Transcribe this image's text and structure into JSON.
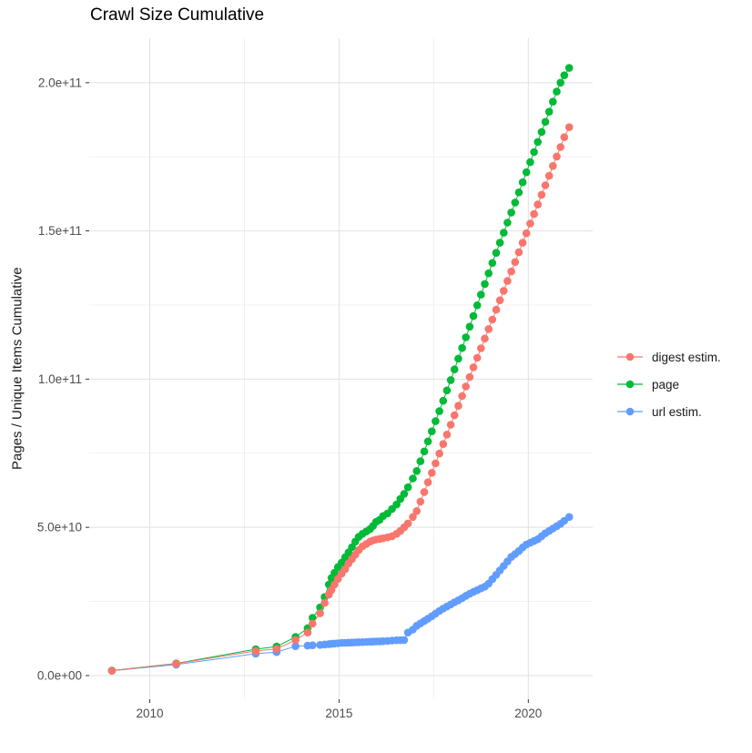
{
  "chart_data": {
    "type": "scatter",
    "title": "Crawl Size Cumulative",
    "xlabel": "",
    "ylabel": "Pages / Unique Items Cumulative",
    "legend_position": "right",
    "grid": "major and minor light-gray gridlines on white panel, no panel border",
    "x_unit": "year (decimal, crawl date)",
    "value_unit": "counts, stored in billions (1e9)",
    "x_range": [
      2008.4,
      2021.7
    ],
    "y_range_billions": [
      -8,
      215
    ],
    "x_ticks": [
      {
        "value": 2010,
        "label": "2010"
      },
      {
        "value": 2015,
        "label": "2015"
      },
      {
        "value": 2020,
        "label": "2020"
      }
    ],
    "x_minor_ticks": [
      2012.5,
      2017.5
    ],
    "y_ticks": [
      {
        "value": 0,
        "label": "0.0e+00"
      },
      {
        "value": 50,
        "label": "5.0e+10"
      },
      {
        "value": 100,
        "label": "1.0e+11"
      },
      {
        "value": 150,
        "label": "1.5e+11"
      },
      {
        "value": 200,
        "label": "2.0e+11"
      }
    ],
    "y_minor_ticks": [
      25,
      75,
      125,
      175
    ],
    "axis_text_color": "#4d4d4d",
    "major_grid_color": "#e3e3e3",
    "minor_grid_color": "#eeeeee",
    "x": [
      2009.0,
      2010.7,
      2012.8,
      2013.35,
      2013.85,
      2014.17,
      2014.3,
      2014.5,
      2014.62,
      2014.73,
      2014.8,
      2014.88,
      2014.97,
      2015.07,
      2015.16,
      2015.25,
      2015.34,
      2015.43,
      2015.52,
      2015.62,
      2015.72,
      2015.82,
      2015.9,
      2015.98,
      2016.07,
      2016.16,
      2016.28,
      2016.4,
      2016.52,
      2016.62,
      2016.72,
      2016.82,
      2016.95,
      2017.05,
      2017.15,
      2017.25,
      2017.35,
      2017.45,
      2017.55,
      2017.65,
      2017.75,
      2017.85,
      2017.95,
      2018.05,
      2018.15,
      2018.25,
      2018.35,
      2018.45,
      2018.55,
      2018.65,
      2018.75,
      2018.85,
      2018.95,
      2019.05,
      2019.15,
      2019.25,
      2019.35,
      2019.45,
      2019.55,
      2019.65,
      2019.75,
      2019.85,
      2019.95,
      2020.05,
      2020.15,
      2020.25,
      2020.35,
      2020.45,
      2020.55,
      2020.65,
      2020.75,
      2020.85,
      2020.95,
      2021.08
    ],
    "series": [
      {
        "name": "digest estim.",
        "color": "#F8766D",
        "values": [
          1.6,
          4.0,
          8.3,
          9.0,
          12.0,
          14.5,
          17.5,
          21.0,
          24.5,
          27.3,
          28.9,
          30.7,
          32.6,
          34.4,
          35.9,
          37.8,
          39.3,
          40.8,
          42.3,
          43.6,
          44.4,
          45.2,
          45.6,
          45.9,
          46.1,
          46.3,
          46.6,
          47.0,
          47.8,
          48.8,
          50.0,
          51.3,
          53.5,
          55.5,
          58.7,
          61.9,
          65.2,
          68.4,
          71.6,
          74.9,
          78.1,
          81.3,
          84.6,
          87.8,
          91.0,
          94.3,
          97.5,
          100.7,
          104.0,
          107.2,
          110.4,
          113.7,
          116.9,
          120.1,
          123.4,
          126.6,
          129.8,
          133.1,
          136.3,
          139.5,
          142.8,
          146.0,
          149.2,
          152.5,
          155.7,
          158.9,
          162.2,
          165.4,
          168.6,
          171.9,
          175.1,
          178.3,
          181.6,
          185.0
        ]
      },
      {
        "name": "page",
        "color": "#00BA38",
        "values": [
          1.7,
          4.1,
          8.9,
          9.8,
          13.0,
          16.0,
          19.5,
          23.0,
          26.5,
          30.7,
          32.9,
          34.7,
          36.6,
          38.1,
          39.9,
          41.5,
          43.3,
          45.2,
          46.8,
          47.8,
          48.6,
          49.4,
          50.5,
          51.9,
          52.5,
          53.8,
          54.7,
          56.2,
          57.7,
          59.6,
          61.3,
          63.5,
          66.5,
          69.0,
          72.3,
          75.6,
          79.0,
          82.4,
          85.8,
          89.2,
          92.7,
          96.2,
          99.7,
          103.3,
          106.9,
          110.5,
          114.1,
          117.7,
          121.3,
          124.9,
          128.5,
          132.1,
          135.7,
          139.2,
          142.6,
          146.0,
          149.4,
          152.8,
          156.2,
          159.6,
          163.0,
          166.4,
          169.8,
          173.2,
          176.6,
          180.0,
          183.4,
          186.8,
          190.2,
          193.6,
          197.0,
          200.0,
          202.5,
          205.0
        ]
      },
      {
        "name": "url estim.",
        "color": "#619CFF",
        "values": [
          1.6,
          3.7,
          7.4,
          7.9,
          9.9,
          10.1,
          10.2,
          10.35,
          10.5,
          10.6,
          10.7,
          10.8,
          10.9,
          11.0,
          11.05,
          11.1,
          11.15,
          11.2,
          11.25,
          11.3,
          11.35,
          11.4,
          11.45,
          11.5,
          11.55,
          11.6,
          11.7,
          11.8,
          11.9,
          11.95,
          12.0,
          14.5,
          15.5,
          16.8,
          17.6,
          18.4,
          19.2,
          20.0,
          20.9,
          21.8,
          22.6,
          23.3,
          24.0,
          24.7,
          25.4,
          26.1,
          26.9,
          27.6,
          28.2,
          28.8,
          29.4,
          30.0,
          31.0,
          32.5,
          34.0,
          35.5,
          37.0,
          38.5,
          40.0,
          41.0,
          42.0,
          43.2,
          44.2,
          44.8,
          45.4,
          46.0,
          47.0,
          48.0,
          48.8,
          49.6,
          50.4,
          51.2,
          52.2,
          53.5
        ]
      }
    ],
    "draw_order_bottom_to_top": [
      "url estim.",
      "page",
      "digest estim."
    ],
    "point_radius_px": 4.3
  }
}
